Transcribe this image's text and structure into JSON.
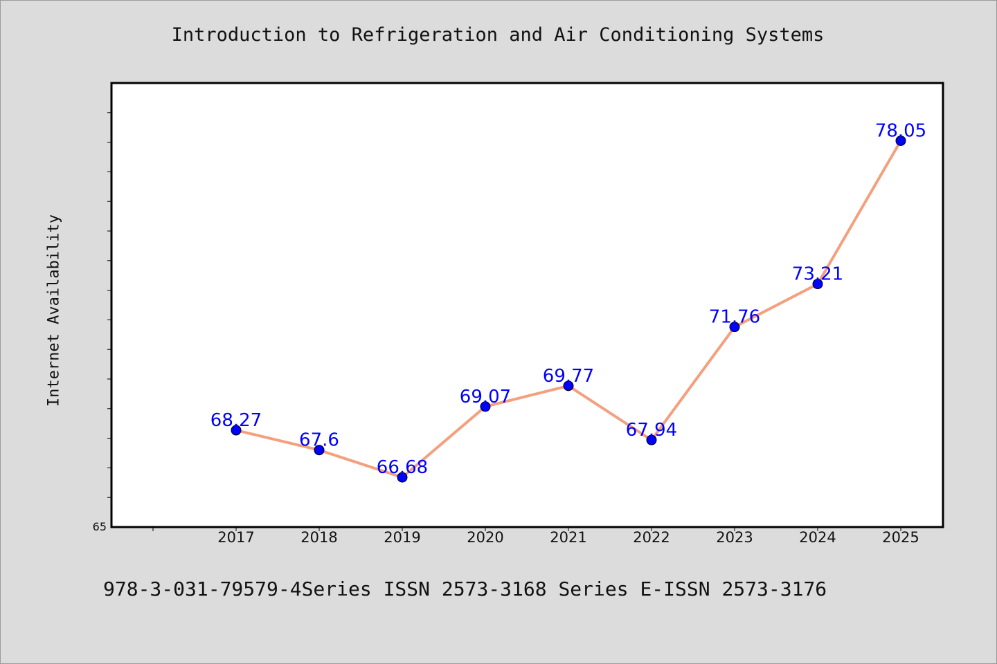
{
  "chart_data": {
    "type": "line",
    "title": "Introduction to Refrigeration and Air Conditioning Systems",
    "ylabel": "Internet Availability",
    "xlabel": "",
    "categories": [
      "2017",
      "2018",
      "2019",
      "2020",
      "2021",
      "2022",
      "2023",
      "2024",
      "2025"
    ],
    "series": [
      {
        "values": [
          68.27,
          67.6,
          66.68,
          69.07,
          69.77,
          67.94,
          71.76,
          73.21,
          78.05
        ],
        "labels": [
          "68.27",
          "67.6",
          "66.68",
          "69.07",
          "69.77",
          "67.94",
          "71.76",
          "73.21",
          "78.05"
        ]
      }
    ],
    "ylim": [
      65,
      80
    ],
    "y_tick_label": "65",
    "grid": false,
    "line_color": "#f4a07e",
    "marker_color": "#0000ff",
    "label_color": "#0000ff",
    "plot_background": "#ffffff",
    "page_background": "#dcdcdc"
  },
  "footer": {
    "text": "978-3-031-79579-4Series ISSN 2573-3168 Series E-ISSN 2573-3176"
  }
}
